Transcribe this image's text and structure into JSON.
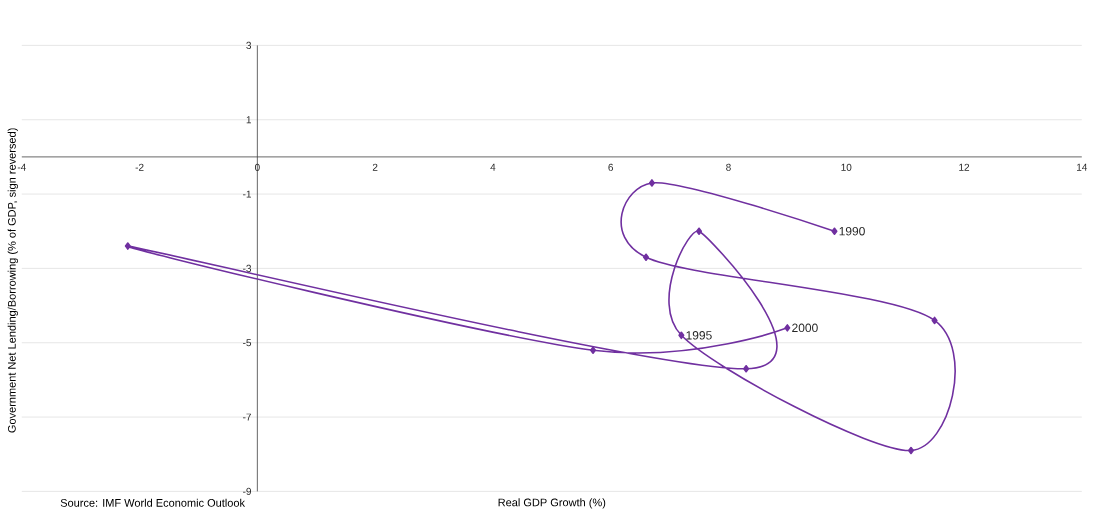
{
  "chart_data": {
    "type": "line",
    "xlabel": "Real GDP Growth (%)",
    "ylabel": "Government Net Lending/Borrowing (% of GDP,  sign reversed)",
    "series": [
      {
        "color": "#7030a0",
        "x": [
          9.8,
          6.7,
          6.6,
          11.5,
          11.1,
          7.2,
          7.5,
          8.3,
          -2.2,
          5.7,
          9.0
        ],
        "values": [
          -2.0,
          -0.7,
          -2.7,
          -4.4,
          -7.9,
          -4.8,
          -2.0,
          -5.7,
          -2.4,
          -5.2,
          -4.6
        ]
      }
    ],
    "xlim": [
      -4,
      14
    ],
    "xticks": [
      -4,
      -2,
      0,
      2,
      4,
      6,
      8,
      10,
      12,
      14
    ],
    "ylim": [
      -9,
      3
    ],
    "yticks": [
      -9,
      -7,
      -5,
      -3,
      -1,
      1,
      3
    ],
    "grid": "y",
    "marker": "diamond",
    "line_style": "solid",
    "annotations": [
      {
        "text": "1990",
        "x": 9.8,
        "y": -2.0
      },
      {
        "text": "1995",
        "x": 7.2,
        "y": -4.8
      },
      {
        "text": "2000",
        "x": 9.0,
        "y": -4.6
      },
      "Source: IMF World Economic Outlook"
    ]
  }
}
